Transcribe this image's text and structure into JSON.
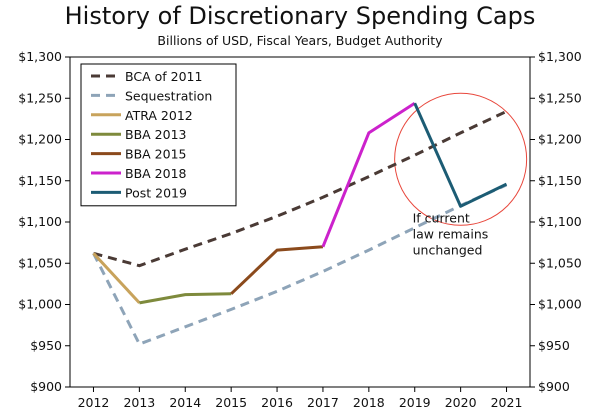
{
  "chart_data": {
    "type": "line",
    "title": "History of Discretionary Spending Caps",
    "subtitle": "Billions of USD, Fiscal Years, Budget Authority",
    "x": [
      2012,
      2013,
      2014,
      2015,
      2016,
      2017,
      2018,
      2019,
      2020,
      2021
    ],
    "x_tick_labels": [
      "2012",
      "2013",
      "2014",
      "2015",
      "2016",
      "2017",
      "2018",
      "2019",
      "2020",
      "2021"
    ],
    "ylim": [
      900,
      1300
    ],
    "y_ticks": [
      900,
      950,
      1000,
      1050,
      1100,
      1150,
      1200,
      1250,
      1300
    ],
    "y_tick_labels": [
      "$900",
      "$950",
      "$1,000",
      "$1,050",
      "$1,100",
      "$1,150",
      "$1,200",
      "$1,250",
      "$1,300"
    ],
    "dual_y_axis": true,
    "grid": false,
    "legend_position": "top-left",
    "series": [
      {
        "name": "BCA of 2011",
        "color": "#4a3a35",
        "style": "dashed",
        "points": [
          [
            2012,
            1062
          ],
          [
            2013,
            1047
          ],
          [
            2014,
            1067
          ],
          [
            2015,
            1086
          ],
          [
            2016,
            1107
          ],
          [
            2017,
            1130
          ],
          [
            2018,
            1155
          ],
          [
            2019,
            1181
          ],
          [
            2020,
            1208
          ],
          [
            2021,
            1234
          ]
        ]
      },
      {
        "name": "Sequestration",
        "color": "#8ea4b8",
        "style": "dashed",
        "points": [
          [
            2012,
            1062
          ],
          [
            2013,
            952
          ],
          [
            2014,
            973
          ],
          [
            2015,
            994
          ],
          [
            2016,
            1016
          ],
          [
            2017,
            1040
          ],
          [
            2018,
            1066
          ],
          [
            2019,
            1093
          ],
          [
            2020,
            1120
          ],
          [
            2021,
            1145
          ]
        ]
      },
      {
        "name": "ATRA 2012",
        "color": "#c8a35c",
        "style": "solid",
        "points": [
          [
            2012,
            1062
          ],
          [
            2013,
            1002
          ]
        ]
      },
      {
        "name": "BBA 2013",
        "color": "#7e8a3c",
        "style": "solid",
        "points": [
          [
            2013,
            1002
          ],
          [
            2014,
            1012
          ],
          [
            2015,
            1013
          ]
        ]
      },
      {
        "name": "BBA 2015",
        "color": "#8b4a1c",
        "style": "solid",
        "points": [
          [
            2015,
            1013
          ],
          [
            2016,
            1066
          ],
          [
            2017,
            1070
          ]
        ]
      },
      {
        "name": "BBA 2018",
        "color": "#cc22cc",
        "style": "solid",
        "points": [
          [
            2017,
            1070
          ],
          [
            2018,
            1208
          ],
          [
            2019,
            1244
          ]
        ]
      },
      {
        "name": "Post 2019",
        "color": "#1c5c74",
        "style": "solid",
        "points": [
          [
            2019,
            1244
          ],
          [
            2020,
            1119
          ],
          [
            2021,
            1146
          ]
        ]
      }
    ],
    "annotation": {
      "text": "If current\nlaw remains\nunchanged",
      "circle_color": "#e8473c",
      "anchor": [
        2020,
        1176
      ]
    }
  }
}
